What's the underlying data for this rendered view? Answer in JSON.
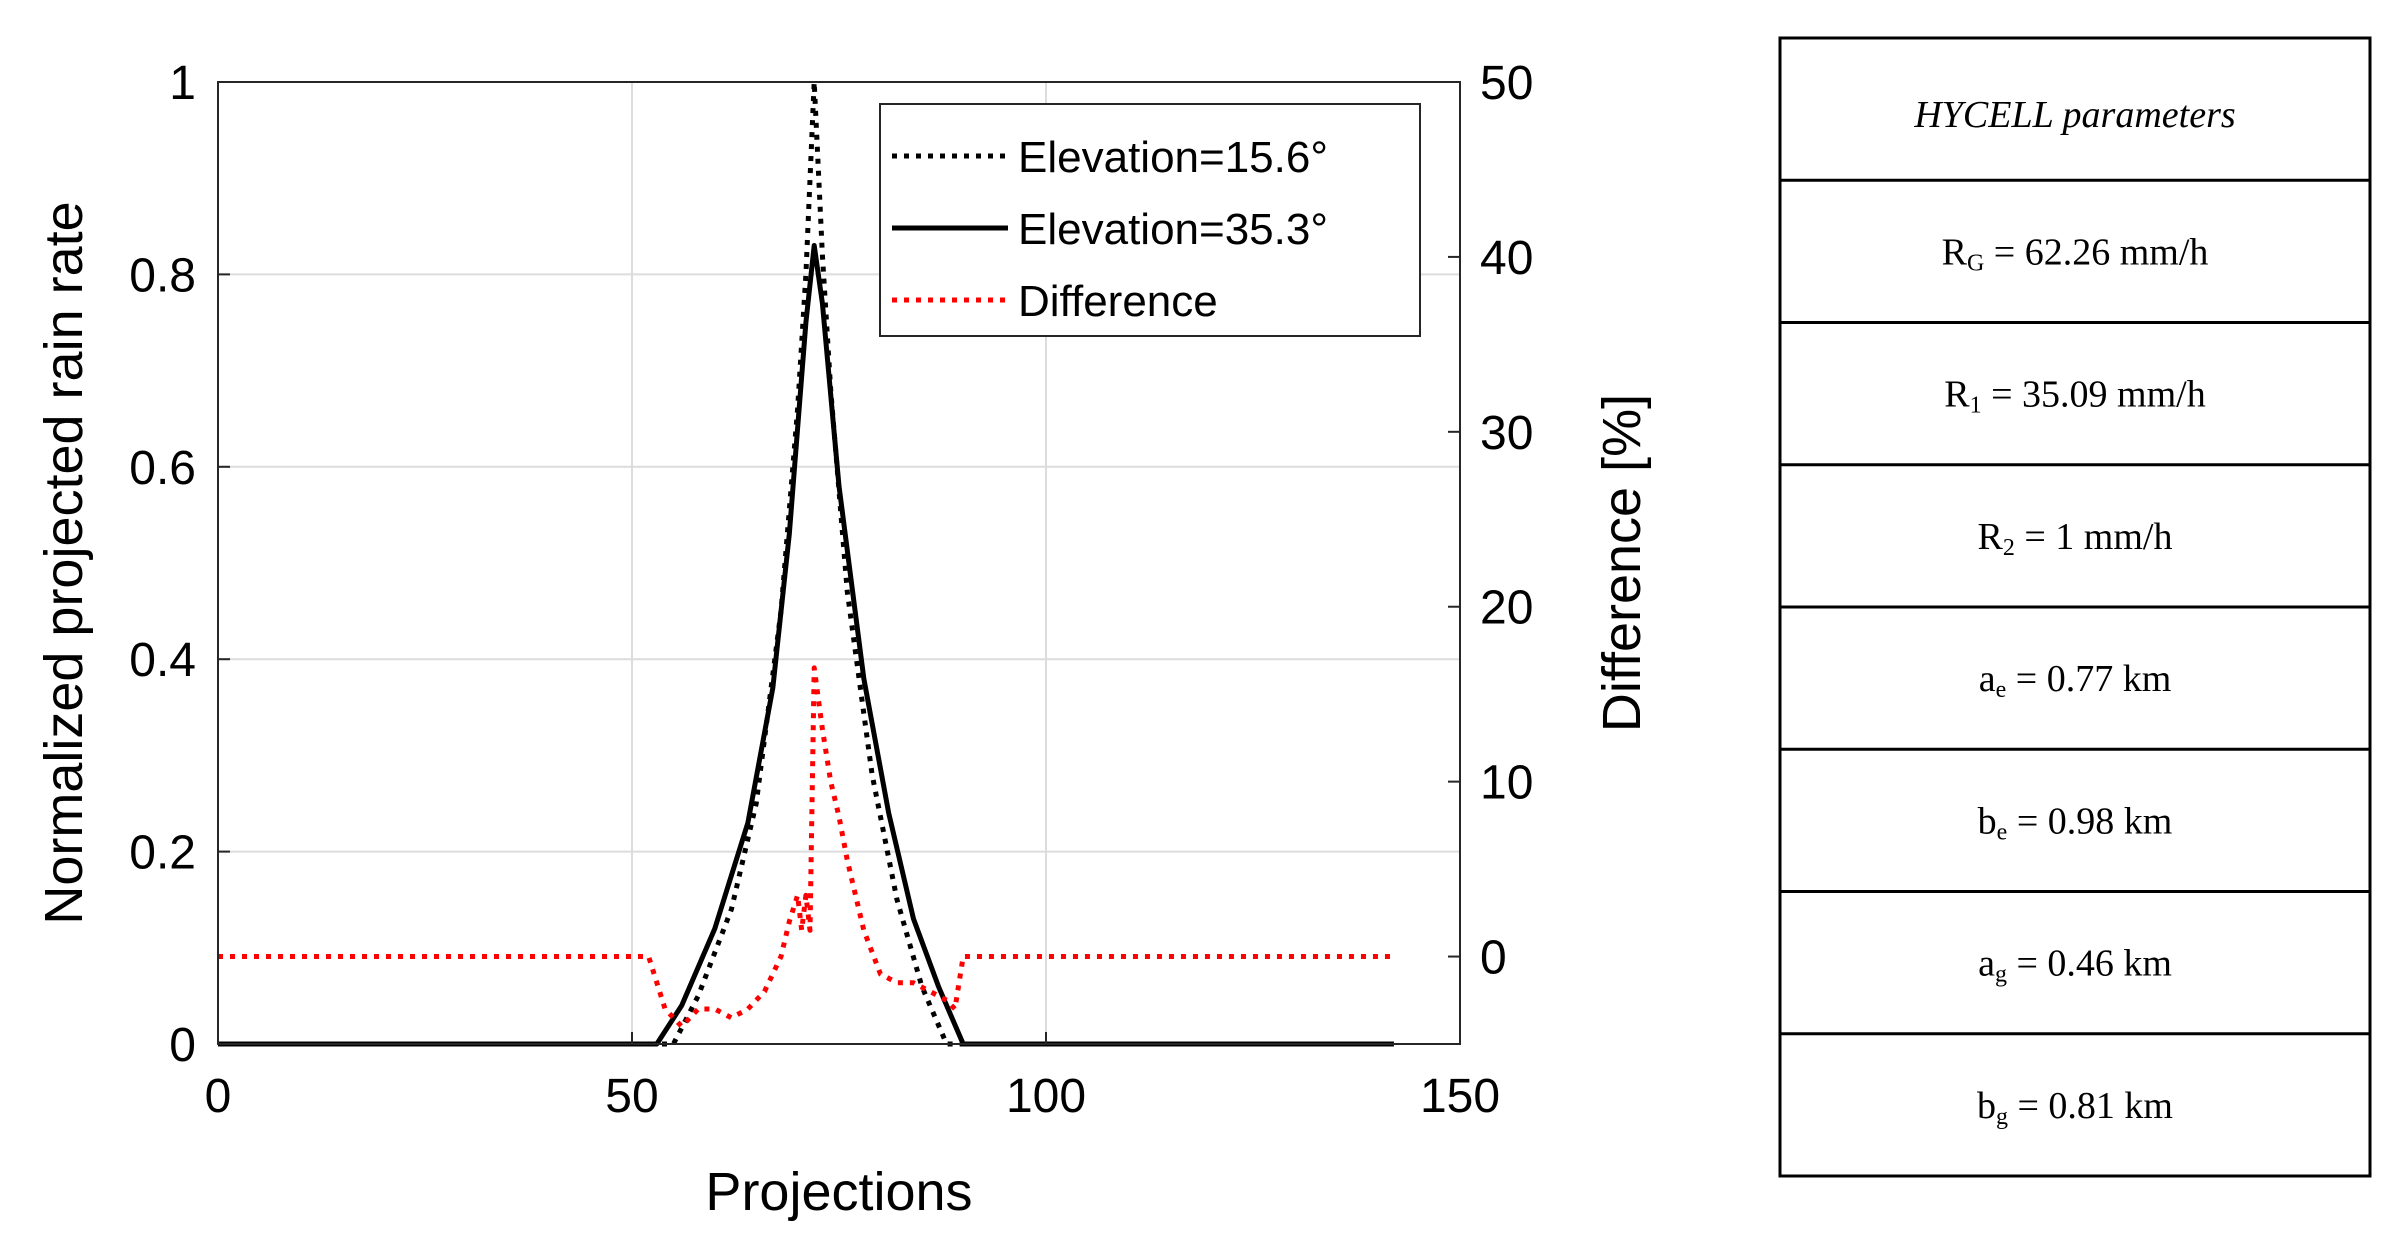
{
  "chart_data": {
    "type": "line",
    "title": "",
    "xlabel": "Projections",
    "ylabel": "Normalized projected rain rate",
    "y2label": "Difference [%]",
    "xlim": [
      0,
      150
    ],
    "ylim": [
      0,
      1
    ],
    "y2lim": [
      -5,
      50
    ],
    "xticks": [
      0,
      50,
      100,
      150
    ],
    "xtick_labels": [
      "0",
      "50",
      "100",
      "150"
    ],
    "yticks": [
      0,
      0.2,
      0.4,
      0.6,
      0.8,
      1
    ],
    "ytick_labels": [
      "0",
      "0.2",
      "0.4",
      "0.6",
      "0.8",
      "1"
    ],
    "y2ticks": [
      0,
      10,
      20,
      30,
      40,
      50
    ],
    "y2tick_labels": [
      "0",
      "10",
      "20",
      "30",
      "40",
      "50"
    ],
    "grid": true,
    "legend_position": "top-right",
    "series": [
      {
        "name": "Elevation=15.6°",
        "axis": "left",
        "color": "#000000",
        "style": "dotted",
        "x": [
          0,
          55,
          58,
          62,
          65,
          68,
          70,
          71,
          72,
          73,
          74,
          76,
          79,
          82,
          85,
          88,
          142
        ],
        "y": [
          0,
          0,
          0.05,
          0.14,
          0.25,
          0.45,
          0.66,
          0.8,
          1.0,
          0.82,
          0.68,
          0.47,
          0.28,
          0.15,
          0.06,
          0.0,
          0.0
        ]
      },
      {
        "name": "Elevation=35.3°",
        "axis": "left",
        "color": "#000000",
        "style": "solid",
        "x": [
          0,
          53,
          56,
          60,
          64,
          67,
          69,
          71,
          72,
          73,
          75,
          78,
          81,
          84,
          87,
          90,
          142
        ],
        "y": [
          0,
          0,
          0.04,
          0.12,
          0.23,
          0.37,
          0.53,
          0.75,
          0.83,
          0.77,
          0.58,
          0.38,
          0.24,
          0.13,
          0.06,
          0.0,
          0.0
        ]
      },
      {
        "name": "Difference",
        "axis": "right",
        "color": "#ff0000",
        "style": "dotted",
        "x": [
          0,
          52,
          54,
          56,
          58,
          60,
          62,
          64,
          66,
          68,
          69,
          70,
          70.5,
          71,
          71.5,
          72,
          73,
          74,
          75,
          76,
          78,
          80,
          82,
          84,
          86,
          88,
          89,
          90,
          142
        ],
        "y": [
          0,
          0,
          -3,
          -4,
          -3,
          -3,
          -3.5,
          -3,
          -2,
          0,
          2,
          3.5,
          1.5,
          3.5,
          1.5,
          16.5,
          13,
          10,
          8,
          5.5,
          1.5,
          -1,
          -1.5,
          -1.5,
          -2,
          -2.5,
          -3,
          0,
          0
        ]
      }
    ],
    "legend": [
      "Elevation=15.6°",
      "Elevation=35.3°",
      "Difference"
    ]
  },
  "table": {
    "title": "HYCELL parameters",
    "rows": [
      {
        "base": "R",
        "sub": "G",
        "rest": " = 62.26 mm/h"
      },
      {
        "base": "R",
        "sub": "1",
        "rest": " = 35.09 mm/h"
      },
      {
        "base": "R",
        "sub": "2",
        "rest": " = 1 mm/h"
      },
      {
        "base": "a",
        "sub": "e",
        "rest": " = 0.77 km"
      },
      {
        "base": "b",
        "sub": "e",
        "rest": " = 0.98 km"
      },
      {
        "base": "a",
        "sub": "g",
        "rest": " = 0.46 km"
      },
      {
        "base": "b",
        "sub": "g",
        "rest": " = 0.81 km"
      }
    ]
  }
}
